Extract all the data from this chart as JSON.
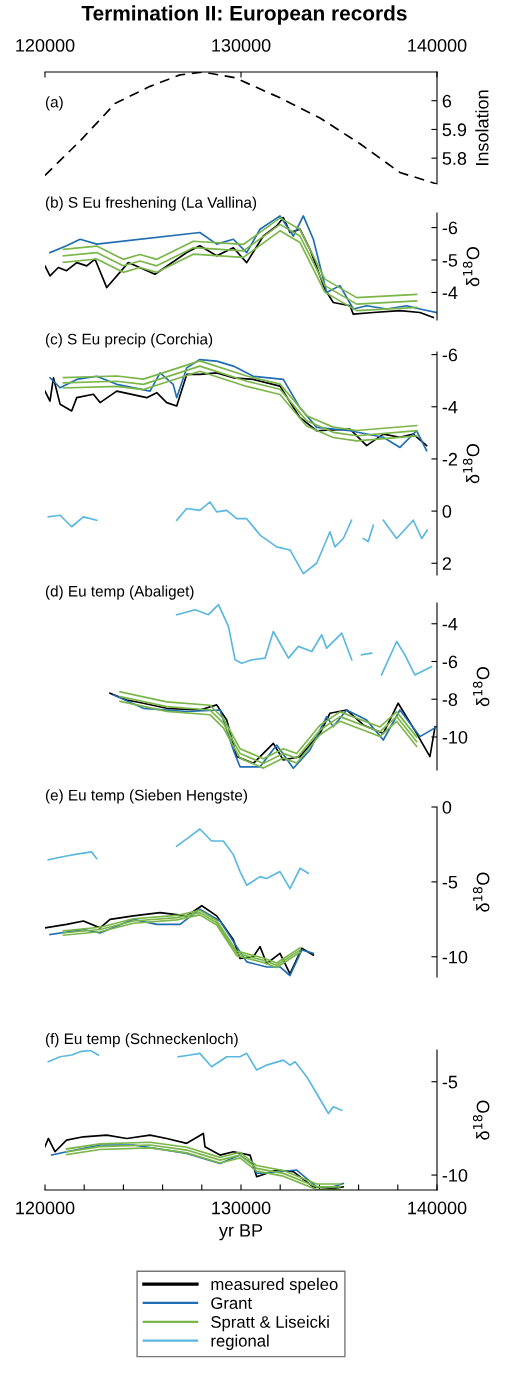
{
  "chart_data": [
    {
      "type": "line",
      "title": "Termination II: European records",
      "subtitle": "(a)",
      "ylabel": "Insolation",
      "line_style": "dashed",
      "xlim": [
        120000,
        140000
      ],
      "xticks": [
        120000,
        130000,
        140000
      ],
      "ylim": [
        5.71,
        6.1
      ],
      "yticks": [
        5.8,
        5.9,
        6
      ],
      "series": [
        {
          "color": "#000000",
          "x": [
            120000,
            121790,
            123570,
            125360,
            126890,
            128060,
            129690,
            131990,
            134030,
            136070,
            138110,
            140000
          ],
          "values": [
            5.74,
            5.86,
            5.99,
            6.05,
            6.09,
            6.1,
            6.08,
            6.01,
            5.94,
            5.85,
            5.75,
            5.71
          ]
        }
      ]
    },
    {
      "type": "line",
      "title": "(b) S Eu freshening (La Vallina)",
      "ylabel": "δ$^{18}$O",
      "xlim": [
        120000,
        140000
      ],
      "ylim": [
        -3.15,
        -6.45
      ],
      "yticks": [
        -6,
        -5,
        -4
      ],
      "tick_labels": "y",
      "series": [
        {
          "color": "#000000",
          "x": [
            120000,
            120255,
            120680,
            121100,
            121620,
            122130,
            122550,
            123150,
            124250,
            125610,
            127230,
            127900,
            128760,
            129610,
            130290,
            131140,
            131820,
            132160,
            132500,
            133010,
            133520,
            134280,
            134710,
            135560,
            135730,
            136750,
            138110,
            139130,
            139810
          ],
          "values": [
            -4.82,
            -4.51,
            -4.77,
            -4.67,
            -4.92,
            -4.82,
            -5.03,
            -4.15,
            -4.92,
            -4.56,
            -5.23,
            -5.44,
            -5.13,
            -5.38,
            -4.92,
            -5.74,
            -6.05,
            -6.31,
            -5.85,
            -5.95,
            -5.33,
            -4.1,
            -3.69,
            -3.59,
            -3.33,
            -3.38,
            -3.44,
            -3.38,
            -3.23
          ]
        },
        {
          "color": "#1f6db3",
          "x": [
            120255,
            121100,
            121790,
            122640,
            127900,
            128760,
            129610,
            130290,
            130970,
            131990,
            132670,
            133180,
            133690,
            134370,
            135050,
            135730,
            136410,
            137430,
            138450,
            139130,
            140000
          ],
          "values": [
            -5.23,
            -5.44,
            -5.64,
            -5.49,
            -5.85,
            -5.49,
            -5.64,
            -5.23,
            -5.95,
            -6.36,
            -5.74,
            -6.36,
            -5.64,
            -4.0,
            -4.21,
            -3.49,
            -3.59,
            -3.49,
            -3.59,
            -3.49,
            -3.38
          ]
        },
        {
          "color": "#7ab648",
          "x": [
            120940,
            122640,
            123990,
            124840,
            125700,
            127570,
            130120,
            131990,
            133010,
            134280,
            135900,
            138960
          ],
          "values": [
            -5.13,
            -5.23,
            -4.82,
            -4.97,
            -4.82,
            -5.38,
            -5.28,
            -6.1,
            -5.74,
            -4.21,
            -3.64,
            -3.74
          ]
        },
        {
          "color": "#7ab648",
          "x": [
            120940,
            122640,
            123990,
            124840,
            125700,
            127570,
            130120,
            131990,
            133010,
            134280,
            135900,
            138960
          ],
          "values": [
            -5.33,
            -5.43,
            -5.02,
            -5.17,
            -5.02,
            -5.58,
            -5.48,
            -6.3,
            -5.94,
            -4.41,
            -3.84,
            -3.94
          ]
        },
        {
          "color": "#7ab648",
          "x": [
            120940,
            122640,
            123990,
            124840,
            125700,
            127570,
            130120,
            131990,
            133010,
            134280,
            135900,
            138960
          ],
          "values": [
            -4.93,
            -5.03,
            -4.62,
            -4.77,
            -4.62,
            -5.18,
            -5.08,
            -5.9,
            -5.54,
            -4.01,
            -3.44,
            -3.54
          ]
        }
      ]
    },
    {
      "type": "line",
      "title": "(c) S Eu precip (Corchia)",
      "ylabel": "δ$^{18}$O",
      "xlim": [
        120000,
        140000
      ],
      "ylim": [
        2.45,
        -6.1
      ],
      "yticks": [
        -6,
        -4,
        -2,
        0,
        2
      ],
      "tick_labels": "y",
      "series": [
        {
          "color": "#000000",
          "x": [
            120000,
            120255,
            120430,
            120770,
            121360,
            121620,
            122470,
            122810,
            123660,
            125190,
            125700,
            126210,
            126720,
            127230,
            127900,
            128760,
            129610,
            130630,
            131990,
            133000,
            133860,
            135560,
            136410,
            137260,
            138110,
            138790,
            139470
          ],
          "values": [
            -4.6,
            -4.22,
            -5.11,
            -4.1,
            -3.84,
            -4.35,
            -4.48,
            -4.16,
            -4.6,
            -4.35,
            -4.54,
            -4.16,
            -4.03,
            -5.24,
            -5.24,
            -5.3,
            -5.11,
            -5.05,
            -4.79,
            -3.59,
            -3.08,
            -3.14,
            -2.51,
            -2.95,
            -2.83,
            -2.95,
            -2.51
          ]
        },
        {
          "color": "#1f6db3",
          "x": [
            120255,
            120770,
            121620,
            122640,
            123660,
            125360,
            125870,
            126540,
            126720,
            127230,
            127900,
            128760,
            129610,
            130630,
            132160,
            133000,
            133860,
            135560,
            137260,
            138110,
            138960,
            139470
          ],
          "values": [
            -5.11,
            -4.73,
            -5.05,
            -5.17,
            -4.86,
            -4.6,
            -5.3,
            -4.86,
            -4.35,
            -5.49,
            -5.81,
            -5.75,
            -5.56,
            -5.17,
            -5.05,
            -3.97,
            -3.21,
            -3.08,
            -2.83,
            -2.44,
            -3.08,
            -2.32
          ]
        },
        {
          "color": "#7ab648",
          "x": [
            120940,
            123660,
            125020,
            127900,
            130290,
            131990,
            133350,
            134700,
            135900,
            138960
          ],
          "values": [
            -4.92,
            -4.98,
            -4.86,
            -5.56,
            -4.98,
            -4.67,
            -3.46,
            -3.02,
            -2.89,
            -3.08
          ]
        },
        {
          "color": "#7ab648",
          "x": [
            120940,
            123660,
            125020,
            127900,
            130290,
            131990,
            133350,
            134700,
            135900,
            138960
          ],
          "values": [
            -5.12,
            -5.18,
            -5.06,
            -5.76,
            -5.18,
            -4.87,
            -3.66,
            -3.22,
            -3.09,
            -3.28
          ]
        },
        {
          "color": "#7ab648",
          "x": [
            120940,
            123660,
            125020,
            127900,
            130290,
            131990,
            133350,
            134700,
            135900,
            138960
          ],
          "values": [
            -4.72,
            -4.78,
            -4.66,
            -5.36,
            -4.78,
            -4.47,
            -3.26,
            -2.82,
            -2.69,
            -2.88
          ]
        },
        {
          "color": "#5ab8e0",
          "x": [
            120170,
            120770,
            121360,
            121960,
            122640,
            124500,
            126720,
            127230,
            127900,
            128420,
            128760,
            129270,
            129780,
            130290,
            130970,
            131820,
            132500,
            133180,
            133860,
            134540,
            134790,
            135220,
            135640,
            135950,
            136240,
            136490,
            136750,
            137000,
            137260,
            137940,
            138790,
            139220,
            139500
          ],
          "values": [
            0.22,
            0.16,
            0.6,
            0.22,
            0.35,
            null,
            0.35,
            -0.1,
            -0.03,
            -0.35,
            0.03,
            -0.03,
            0.29,
            0.29,
            0.92,
            1.37,
            1.49,
            2.4,
            2.0,
            0.79,
            1.37,
            1.05,
            0.35,
            null,
            1.05,
            1.17,
            0.54,
            null,
            0.35,
            1.05,
            0.35,
            1.05,
            0.73
          ]
        }
      ]
    },
    {
      "type": "line",
      "title": "(d) Eu temp (Abaliget)",
      "ylabel": "δ$^{18}$O",
      "xlim": [
        120000,
        140000
      ],
      "ylim": [
        -11.75,
        -2.9
      ],
      "yticks": [
        -10,
        -8,
        -6,
        -4
      ],
      "tick_labels": "y",
      "series": [
        {
          "color": "#000000",
          "x": [
            123320,
            124170,
            125020,
            126210,
            127900,
            128760,
            129270,
            129780,
            130630,
            131650,
            132160,
            133010,
            134030,
            134540,
            135390,
            136240,
            137260,
            138020,
            138960,
            139640,
            139900
          ],
          "values": [
            -7.68,
            -8.04,
            -8.21,
            -8.48,
            -8.57,
            -8.3,
            -9.1,
            -11.04,
            -11.4,
            -10.34,
            -11.22,
            -11.04,
            -9.81,
            -8.74,
            -8.57,
            -9.36,
            -9.81,
            -8.21,
            -9.81,
            -11.04,
            -9.45
          ]
        },
        {
          "color": "#1f6db3",
          "x": [
            123490,
            125020,
            127230,
            128930,
            129610,
            129950,
            130970,
            131820,
            132670,
            133520,
            134370,
            134710,
            135390,
            136410,
            137260,
            138110,
            139130,
            140000
          ],
          "values": [
            -7.77,
            -8.48,
            -8.65,
            -8.57,
            -10.69,
            -11.58,
            -11.58,
            -10.43,
            -11.66,
            -10.69,
            -8.92,
            -9.45,
            -8.57,
            -9.1,
            -10.16,
            -8.57,
            -9.98,
            -9.45
          ]
        },
        {
          "color": "#7ab648",
          "x": [
            123830,
            126210,
            128420,
            129100,
            129950,
            131140,
            132160,
            132840,
            134030,
            135050,
            137090,
            137940,
            138960
          ],
          "values": [
            -7.86,
            -8.39,
            -8.57,
            -9.27,
            -10.87,
            -11.4,
            -10.87,
            -11.13,
            -9.63,
            -8.92,
            -9.72,
            -8.92,
            -10.25
          ]
        },
        {
          "color": "#7ab648",
          "x": [
            123830,
            126210,
            128420,
            129100,
            129950,
            131140,
            132160,
            132840,
            134030,
            135050,
            137090,
            137940,
            138960
          ],
          "values": [
            -8.11,
            -8.64,
            -8.82,
            -9.52,
            -11.12,
            -11.65,
            -11.12,
            -11.38,
            -9.88,
            -9.17,
            -9.97,
            -9.17,
            -10.5
          ]
        },
        {
          "color": "#7ab648",
          "x": [
            123830,
            126210,
            128420,
            129100,
            129950,
            131140,
            132160,
            132840,
            134030,
            135050,
            137090,
            137940,
            138960
          ],
          "values": [
            -7.61,
            -8.14,
            -8.32,
            -9.02,
            -10.62,
            -11.15,
            -10.62,
            -10.88,
            -9.38,
            -8.67,
            -9.47,
            -8.67,
            -10.0
          ]
        },
        {
          "color": "#5ab8e0",
          "x": [
            126720,
            127660,
            128340,
            128850,
            129360,
            129700,
            130040,
            130550,
            131230,
            131650,
            132420,
            132930,
            133610,
            134120,
            134370,
            135140,
            135650,
            135900,
            136150,
            136660,
            136900,
            137170,
            137940,
            138360,
            138870,
            139720
          ],
          "values": [
            -3.52,
            -3.26,
            -3.52,
            -2.99,
            -4.14,
            -5.91,
            -6.09,
            -5.91,
            -5.82,
            -4.41,
            -5.82,
            -5.2,
            -5.47,
            -4.58,
            -5.29,
            -4.5,
            -5.91,
            null,
            -5.65,
            -5.56,
            null,
            -6.71,
            -4.94,
            -5.65,
            -6.71,
            -6.27
          ]
        }
      ]
    },
    {
      "type": "line",
      "title": "(e) Eu temp (Sieben Hengste)",
      "ylabel": "δ$^{18}$O",
      "xlim": [
        120000,
        140000
      ],
      "ylim": [
        -11.35,
        0
      ],
      "yticks": [
        -10,
        -5,
        0
      ],
      "tick_labels": "y",
      "series": [
        {
          "color": "#000000",
          "x": [
            120000,
            121100,
            121960,
            122810,
            123320,
            124510,
            125870,
            127230,
            128000,
            128760,
            129610,
            129950,
            130630,
            130970,
            131310,
            131990,
            132500,
            133100,
            133690
          ],
          "values": [
            -8.07,
            -7.84,
            -7.61,
            -8.07,
            -7.5,
            -7.27,
            -7.05,
            -7.27,
            -6.59,
            -7.27,
            -8.86,
            -10.11,
            -10.0,
            -9.32,
            -10.45,
            -9.77,
            -11.14,
            -9.43,
            -9.89
          ]
        },
        {
          "color": "#1f6db3",
          "x": [
            120255,
            121960,
            122810,
            124510,
            125700,
            126890,
            127900,
            128930,
            129780,
            130290,
            131310,
            131990,
            132500,
            133100,
            133690
          ],
          "values": [
            -8.52,
            -8.18,
            -8.41,
            -7.5,
            -7.84,
            -7.84,
            -6.82,
            -7.61,
            -9.32,
            -10.34,
            -10.68,
            -10.68,
            -11.25,
            -9.55,
            -9.77
          ]
        },
        {
          "color": "#7ab648",
          "x": [
            120940,
            122810,
            124510,
            126720,
            127900,
            128760,
            129780,
            131140,
            131820,
            133010
          ],
          "values": [
            -8.41,
            -8.18,
            -7.61,
            -7.39,
            -7.05,
            -7.73,
            -9.77,
            -10.23,
            -10.57,
            -9.55
          ]
        },
        {
          "color": "#7ab648",
          "x": [
            120940,
            122810,
            124510,
            126720,
            127900,
            128760,
            129780,
            131140,
            131820,
            133010
          ],
          "values": [
            -8.56,
            -8.33,
            -7.76,
            -7.54,
            -7.2,
            -7.88,
            -9.92,
            -10.38,
            -10.72,
            -9.7
          ]
        },
        {
          "color": "#7ab648",
          "x": [
            120940,
            122810,
            124510,
            126720,
            127900,
            128760,
            129780,
            131140,
            131820,
            133010
          ],
          "values": [
            -8.26,
            -8.03,
            -7.46,
            -7.24,
            -6.9,
            -7.58,
            -9.62,
            -10.08,
            -10.42,
            -9.4
          ]
        },
        {
          "color": "#5ab8e0",
          "x": [
            120170,
            121020,
            121700,
            122380,
            122640,
            124500,
            126720,
            127320,
            127900,
            128500,
            129100,
            129610,
            129950,
            130290,
            130970,
            131310,
            131990,
            132500,
            133010,
            133440
          ],
          "values": [
            -3.52,
            -3.29,
            -3.13,
            -3.0,
            -3.45,
            null,
            -2.61,
            -2.04,
            -1.47,
            -2.27,
            -2.27,
            -3.18,
            -4.31,
            -5.22,
            -4.65,
            -4.77,
            -4.31,
            -5.45,
            -4.09,
            -4.43
          ]
        }
      ]
    },
    {
      "type": "line",
      "title": "(f) Eu temp (Schneckenloch)",
      "ylabel": "δ$^{18}$O",
      "xlabel": "yr BP",
      "xlim": [
        120000,
        140000
      ],
      "xticks": [
        120000,
        {
          "value": 122000,
          "label": null
        },
        {
          "value": 124000,
          "label": null
        },
        {
          "value": 126000,
          "label": null
        },
        {
          "value": 128000,
          "label": null
        },
        130000,
        {
          "value": 132000,
          "label": null
        },
        {
          "value": 134000,
          "label": null
        },
        {
          "value": 136000,
          "label": null
        },
        {
          "value": 138000,
          "label": null
        },
        140000
      ],
      "ylim": [
        -10.8,
        -3.3
      ],
      "yticks": [
        -10,
        -5
      ],
      "legend": "bottom",
      "series": [
        {
          "name": "measured speleo",
          "color": "#000000",
          "x": [
            120000,
            120170,
            120510,
            121100,
            121960,
            123150,
            124170,
            125360,
            126210,
            127230,
            128080,
            128160,
            128930,
            129610,
            130460,
            130800,
            131820,
            132670,
            133690,
            134710,
            135220
          ],
          "values": [
            -8.48,
            -8.04,
            -8.75,
            -8.13,
            -7.95,
            -7.86,
            -8.04,
            -7.86,
            -8.04,
            -8.3,
            -7.77,
            -8.48,
            -8.93,
            -8.75,
            -8.93,
            -10.09,
            -9.73,
            -9.82,
            -10.63,
            -10.71,
            -10.63
          ]
        },
        {
          "name": "Grant",
          "color": "#1f6db3",
          "x": [
            120340,
            121100,
            122810,
            124510,
            126210,
            127230,
            128930,
            129950,
            130630,
            130800,
            131990,
            132840,
            133860,
            134710,
            135220
          ],
          "values": [
            -8.93,
            -8.75,
            -8.39,
            -8.39,
            -8.66,
            -8.84,
            -9.38,
            -8.93,
            -9.46,
            -9.91,
            -9.82,
            -9.73,
            -10.63,
            -10.63,
            -10.45
          ]
        },
        {
          "name": "Spratt & Liseicki",
          "color": "#7ab648",
          "x": [
            121100,
            122810,
            125360,
            127230,
            128930,
            129950,
            130800,
            132160,
            133860,
            135050
          ],
          "values": [
            -8.75,
            -8.48,
            -8.39,
            -8.66,
            -9.2,
            -8.93,
            -9.64,
            -9.91,
            -10.63,
            -10.63
          ]
        },
        {
          "color": "#7ab648",
          "x": [
            121100,
            122810,
            125360,
            127230,
            128930,
            129950,
            130800,
            132160,
            133860,
            135050
          ],
          "values": [
            -8.9,
            -8.63,
            -8.54,
            -8.81,
            -9.35,
            -9.08,
            -9.79,
            -10.06,
            -10.78,
            -10.78
          ]
        },
        {
          "color": "#7ab648",
          "x": [
            121100,
            122810,
            125360,
            127230,
            128930,
            129950,
            130800,
            132160,
            133860,
            135050
          ],
          "values": [
            -8.6,
            -8.33,
            -8.24,
            -8.51,
            -9.05,
            -8.78,
            -9.49,
            -9.76,
            -10.48,
            -10.48
          ]
        },
        {
          "name": "regional",
          "color": "#5ab8e0",
          "x": [
            120170,
            120770,
            121360,
            121790,
            122300,
            122720,
            124500,
            126800,
            127400,
            127900,
            128500,
            129270,
            129950,
            130290,
            130800,
            131310,
            132160,
            132500,
            132760,
            133350,
            133860,
            134460,
            134710,
            135130
          ],
          "values": [
            -3.93,
            -3.66,
            -3.57,
            -3.39,
            -3.32,
            -3.57,
            null,
            -3.66,
            -3.57,
            -3.48,
            -4.2,
            -3.66,
            -3.66,
            -3.48,
            -4.37,
            -4.11,
            -3.84,
            -4.11,
            -3.93,
            -4.73,
            -5.63,
            -6.7,
            -6.34,
            -6.52
          ]
        }
      ]
    }
  ]
}
